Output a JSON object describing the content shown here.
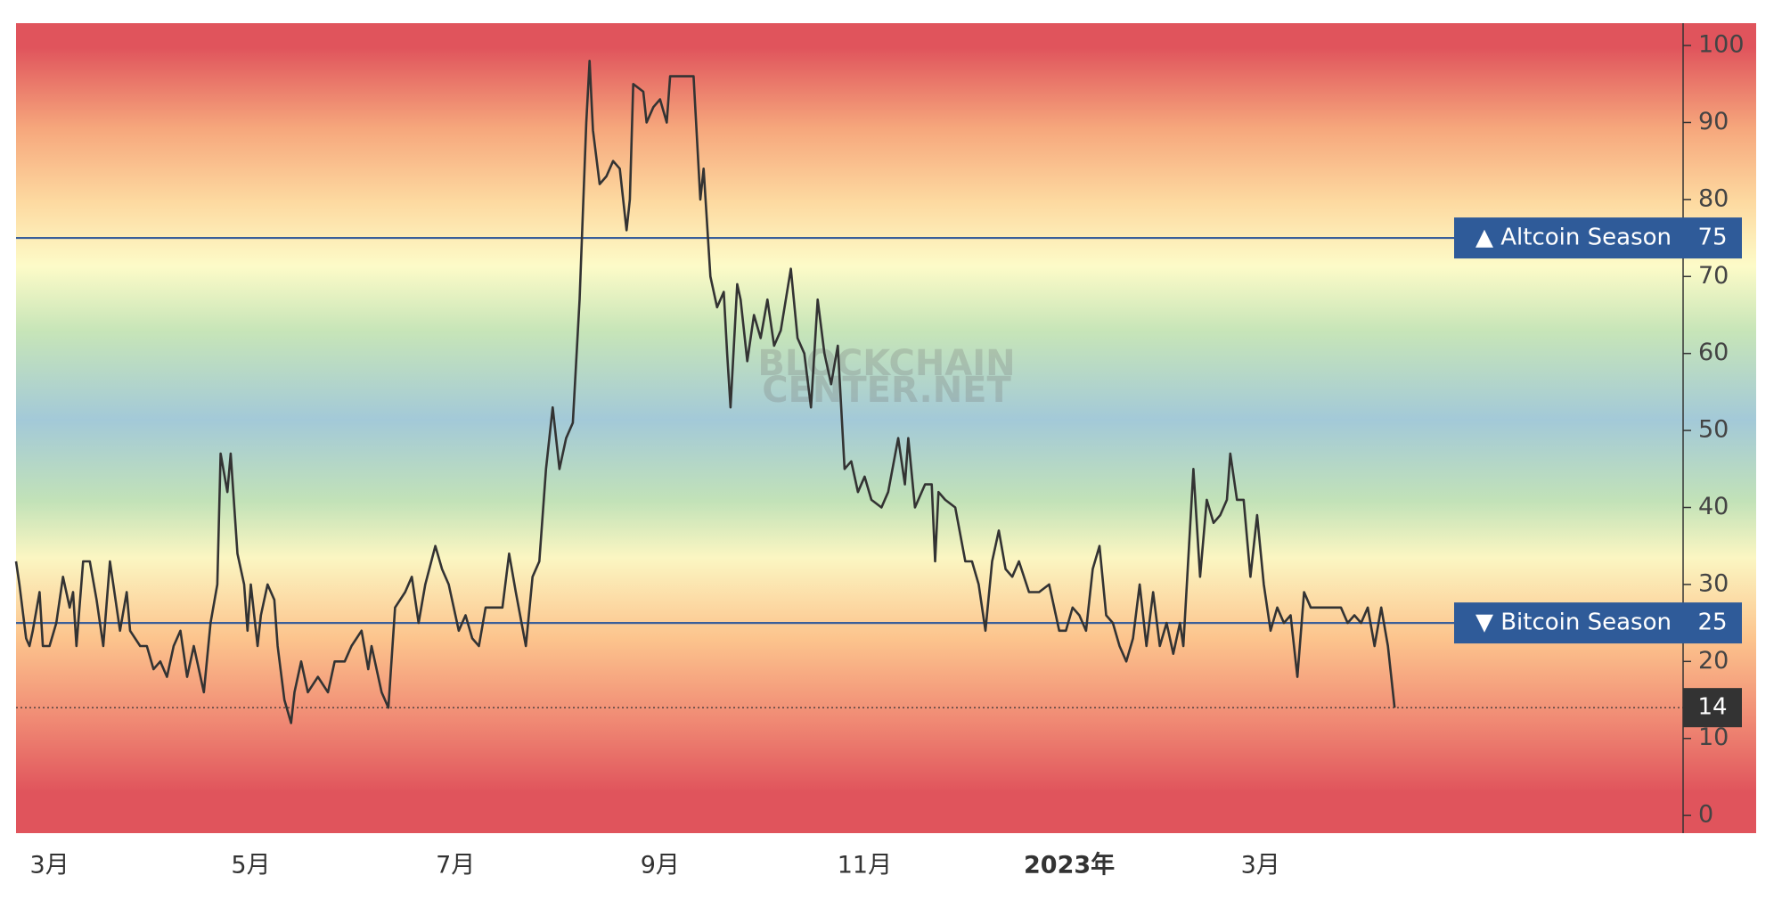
{
  "chart_data": {
    "type": "line",
    "watermark": [
      "BLOCKCHAIN",
      "CENTER.NET"
    ],
    "xlim": [
      0,
      497
    ],
    "xticks": [
      {
        "value": 10,
        "label": "3月"
      },
      {
        "value": 70,
        "label": "5月"
      },
      {
        "value": 131,
        "label": "7月"
      },
      {
        "value": 192,
        "label": "9月"
      },
      {
        "value": 253,
        "label": "11月"
      },
      {
        "value": 314,
        "label": "2023年"
      },
      {
        "value": 371,
        "label": "3月"
      }
    ],
    "ylim": [
      -2.3,
      102.9
    ],
    "yticks": [
      0,
      10,
      20,
      30,
      40,
      50,
      60,
      70,
      80,
      90,
      100
    ],
    "annotations": [
      {
        "label": "▲ Altcoin Season",
        "value": 75
      },
      {
        "label": "▼ Bitcoin Season",
        "value": 25
      }
    ],
    "series": [
      {
        "color": "#333333",
        "x": [
          0,
          1,
          3,
          4,
          5,
          7,
          8,
          10,
          12,
          14,
          16,
          17,
          18,
          20,
          22,
          24,
          26,
          28,
          31,
          33,
          34,
          37,
          39,
          41,
          43,
          45,
          47,
          49,
          51,
          53,
          56,
          58,
          60,
          61,
          63,
          64,
          66,
          68,
          69,
          70,
          72,
          73,
          75,
          77,
          78,
          80,
          82,
          83,
          85,
          87,
          90,
          93,
          95,
          98,
          100,
          103,
          105,
          106,
          109,
          111,
          113,
          116,
          118,
          120,
          122,
          125,
          127,
          129,
          132,
          134,
          136,
          138,
          140,
          143,
          145,
          147,
          149,
          152,
          154,
          156,
          158,
          160,
          162,
          164,
          166,
          168,
          170,
          171,
          172,
          174,
          176,
          178,
          180,
          182,
          183,
          184,
          187,
          188,
          190,
          192,
          194,
          195,
          199,
          202,
          204,
          205,
          207,
          209,
          211,
          212,
          213,
          215,
          216,
          218,
          220,
          222,
          224,
          226,
          228,
          231,
          233,
          235,
          237,
          239,
          241,
          243,
          245,
          247,
          249,
          251,
          253,
          255,
          258,
          260,
          263,
          265,
          266,
          268,
          271,
          273,
          274,
          275,
          277,
          280,
          283,
          285,
          287,
          289,
          291,
          293,
          295,
          297,
          299,
          302,
          305,
          308,
          311,
          313,
          315,
          317,
          319,
          321,
          323,
          325,
          327,
          329,
          331,
          333,
          335,
          337,
          339,
          341,
          343,
          345,
          347,
          348,
          351,
          353,
          355,
          357,
          359,
          361,
          362,
          364,
          366,
          368,
          370,
          372,
          374,
          376,
          378,
          380,
          382,
          384,
          386,
          388,
          392,
          395,
          397,
          399,
          401,
          403,
          405,
          407,
          409,
          411
        ],
        "values": [
          33,
          30,
          23,
          22,
          24,
          29,
          22,
          22,
          25,
          31,
          27,
          29,
          22,
          33,
          33,
          28,
          22,
          33,
          24,
          29,
          24,
          22,
          22,
          19,
          20,
          18,
          22,
          24,
          18,
          22,
          16,
          25,
          30,
          47,
          42,
          47,
          34,
          30,
          24,
          30,
          22,
          26,
          30,
          28,
          22,
          15,
          12,
          16,
          20,
          16,
          18,
          16,
          20,
          20,
          22,
          24,
          19,
          22,
          16,
          14,
          27,
          29,
          31,
          25,
          30,
          35,
          32,
          30,
          24,
          26,
          23,
          22,
          27,
          27,
          27,
          34,
          29,
          22,
          31,
          33,
          45,
          53,
          45,
          49,
          51,
          67,
          90,
          98,
          89,
          82,
          83,
          85,
          84,
          76,
          80,
          95,
          94,
          90,
          92,
          93,
          90,
          96,
          96,
          96,
          80,
          84,
          70,
          66,
          68,
          60,
          53,
          69,
          67,
          59,
          65,
          62,
          67,
          61,
          63,
          71,
          62,
          60,
          53,
          67,
          60,
          56,
          61,
          45,
          46,
          42,
          44,
          41,
          40,
          42,
          49,
          43,
          49,
          40,
          43,
          43,
          33,
          42,
          41,
          40,
          33,
          33,
          30,
          24,
          33,
          37,
          32,
          31,
          33,
          29,
          29,
          30,
          24,
          24,
          27,
          26,
          24,
          32,
          35,
          26,
          25,
          22,
          20,
          23,
          30,
          22,
          29,
          22,
          25,
          21,
          25,
          22,
          45,
          31,
          41,
          38,
          39,
          41,
          47,
          41,
          41,
          31,
          39,
          30,
          24,
          27,
          25,
          26,
          18,
          29,
          27,
          27,
          27,
          27,
          25,
          26,
          25,
          27,
          22,
          27,
          22,
          14
        ]
      }
    ]
  }
}
